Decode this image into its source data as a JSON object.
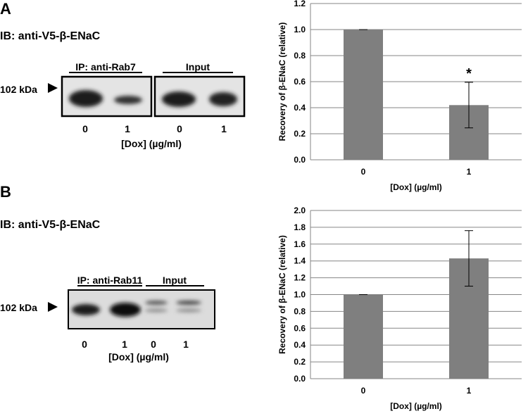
{
  "chart_data": [
    {
      "type": "bar",
      "y_label": "Recovery of β-ENaC (relative)",
      "x_label": "[Dox] (µg/ml)",
      "categories": [
        "0",
        "1"
      ],
      "values": [
        1.0,
        0.42
      ],
      "errors": [
        0,
        0.175
      ],
      "color": "#7f7f7f",
      "annotation": "*",
      "ylim": [
        0,
        1.2
      ],
      "yticks": [
        {
          "value": 0,
          "label": "0.0"
        },
        0.2,
        0.4,
        0.6,
        0.8,
        {
          "value": 1,
          "label": "1.0"
        },
        1.2
      ],
      "grid": true
    },
    {
      "type": "bar",
      "y_label": "Recovery of β-ENaC (relative)",
      "x_label": "[Dox] (µg/ml)",
      "categories": [
        "0",
        "1"
      ],
      "values": [
        1.0,
        1.43
      ],
      "errors": [
        0,
        0.33
      ],
      "color": "#7f7f7f",
      "ylim": [
        0,
        2
      ],
      "yticks": [
        {
          "value": 0,
          "label": "0.0"
        },
        0.2,
        0.4,
        0.6,
        0.8,
        {
          "value": 1,
          "label": "1.0"
        },
        1.2,
        1.4,
        1.6,
        1.8,
        {
          "value": 2,
          "label": "2.0"
        }
      ],
      "grid": true
    }
  ],
  "panels": [
    {
      "letter": "A",
      "ib": "IB: anti-V5-β-ENaC",
      "ip": "IP: anti-Rab7",
      "input": "Input",
      "marker": "102 kDa",
      "lanes": [
        "0",
        "1",
        "0",
        "1"
      ],
      "x_label": "[Dox] (µg/ml)"
    },
    {
      "letter": "B",
      "ib": "IB: anti-V5-β-ENaC",
      "ip": "IP: anti-Rab11",
      "input": "Input",
      "marker": "102 kDa",
      "lanes": [
        "0",
        "1",
        "0",
        "1"
      ],
      "x_label": "[Dox] (µg/ml)"
    }
  ]
}
